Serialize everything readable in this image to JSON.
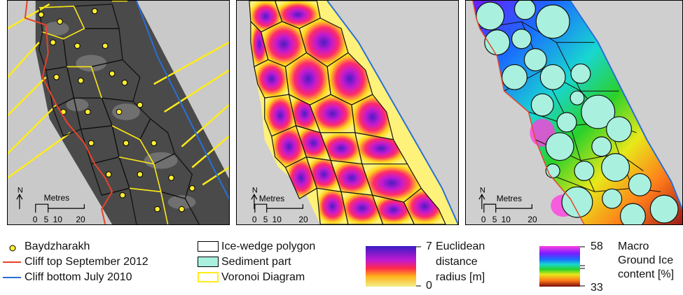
{
  "colors": {
    "cliff_top": "#e8432a",
    "cliff_bottom": "#2a6fd6",
    "voronoi": "#ffeb1a",
    "point_fill": "#ffee33",
    "sediment": "#a9f1de",
    "edges": "#000000"
  },
  "scalebar": {
    "north_label": "N",
    "title": "Metres",
    "ticks": [
      "0",
      "5",
      "10",
      "20"
    ]
  },
  "legend": {
    "points": "Baydzharakh",
    "cliff_top": "Cliff top September 2012",
    "cliff_bottom": "Cliff bottom July 2010",
    "polygon": "Ice-wedge polygon",
    "sediment": "Sediment part",
    "voronoi": "Voronoi Diagram",
    "euclid_max": "7",
    "euclid_min": "0",
    "euclid_l1": "Euclidean",
    "euclid_l2": "distance",
    "euclid_l3": "radius [m]",
    "ice_max": "58",
    "ice_min": "33",
    "ice_l1": "Macro",
    "ice_l2": "Ground Ice",
    "ice_l3": "content [%]"
  }
}
